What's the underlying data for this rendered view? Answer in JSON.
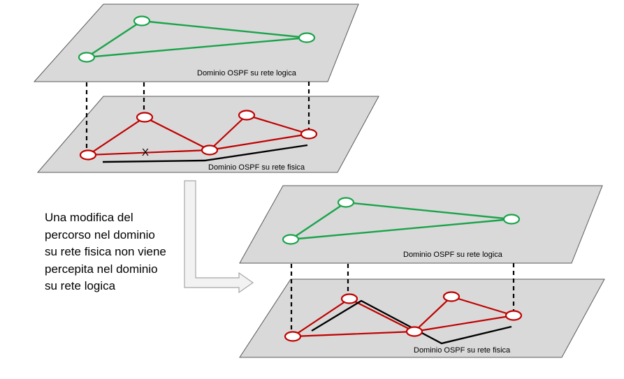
{
  "labels": {
    "top_logical": "Dominio OSPF su rete logica",
    "top_physical": "Dominio OSPF su rete fisica",
    "bottom_logical": "Dominio OSPF su rete logica",
    "bottom_physical": "Dominio OSPF su rete fisica",
    "failure_mark": "X"
  },
  "caption": {
    "lines": [
      "Una modifica del",
      "percorso nel dominio",
      "su rete fisica non viene",
      "percepita nel dominio",
      "su rete logica"
    ]
  },
  "colors": {
    "logical_network": "#1aa34a",
    "physical_network": "#c00000",
    "traffic_path": "#000000",
    "plane_fill": "#d9d9d9"
  }
}
